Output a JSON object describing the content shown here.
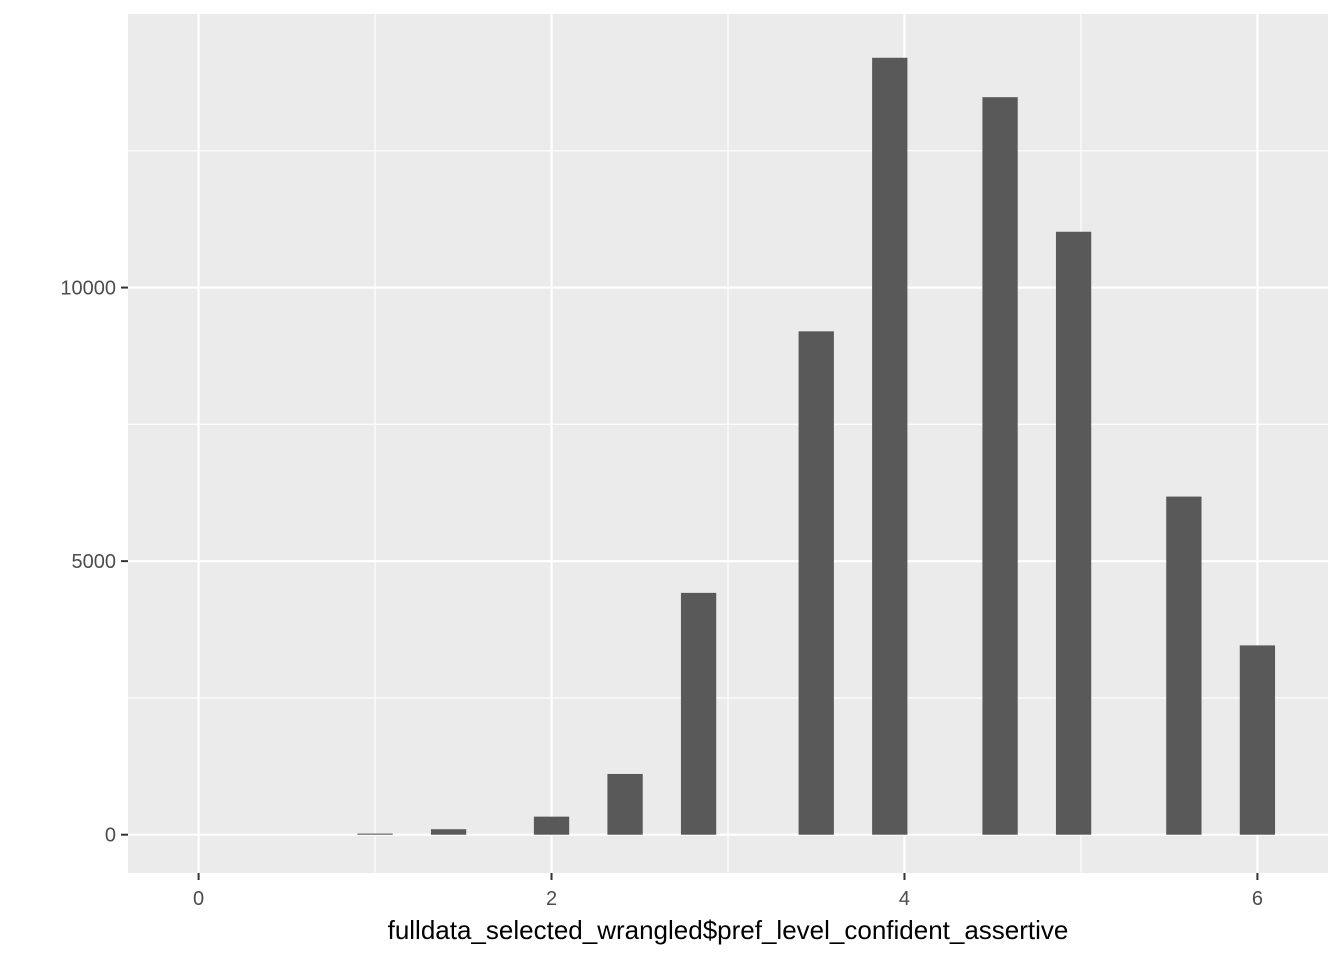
{
  "chart_data": {
    "type": "bar",
    "title": "",
    "xlabel": "fulldata_selected_wrangled$pref_level_confident_assertive",
    "ylabel": "",
    "xlim": [
      -0.4,
      6.4
    ],
    "ylim": [
      -700,
      15000
    ],
    "x_ticks": [
      0,
      2,
      4,
      6
    ],
    "x_minor_ticks": [
      1,
      3,
      5
    ],
    "y_ticks": [
      0,
      5000,
      10000
    ],
    "y_minor_ticks": [
      2500,
      7500,
      12500
    ],
    "bar_width": 0.2,
    "x": [
      1.0,
      1.4167,
      2.0,
      2.4167,
      2.8333,
      3.5,
      3.9167,
      4.5417,
      4.9583,
      5.5833,
      6.0
    ],
    "values": [
      20,
      100,
      330,
      1110,
      4420,
      9200,
      14200,
      13480,
      11020,
      6180,
      3460
    ],
    "grid": true,
    "colors": {
      "panel": "#ebebeb",
      "grid": "#ffffff",
      "bar": "#595959"
    }
  }
}
